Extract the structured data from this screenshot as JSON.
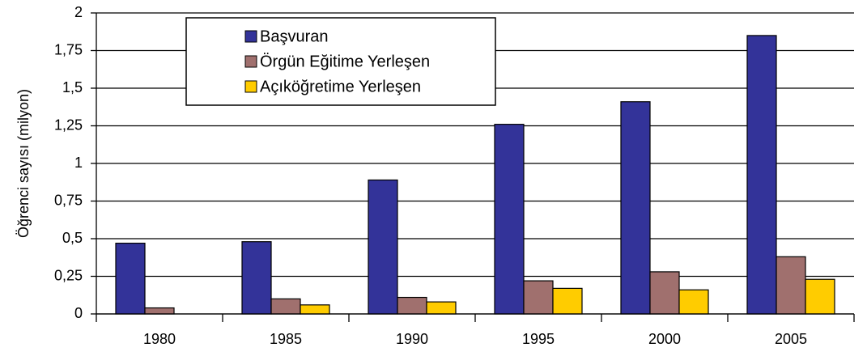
{
  "chart_data": {
    "type": "bar",
    "y_label": "Öğrenci sayısı (milyon)",
    "categories": [
      "1980",
      "1985",
      "1990",
      "1995",
      "2000",
      "2005"
    ],
    "series": [
      {
        "name": "Başvuran",
        "color": "#333399",
        "values": [
          0.47,
          0.48,
          0.89,
          1.26,
          1.41,
          1.85
        ]
      },
      {
        "name": "Örgün Eğitime Yerleşen",
        "color": "#a0706e",
        "values": [
          0.04,
          0.1,
          0.11,
          0.22,
          0.28,
          0.38
        ]
      },
      {
        "name": "Açıköğretime Yerleşen",
        "color": "#ffcc00",
        "values": [
          0,
          0.06,
          0.08,
          0.17,
          0.16,
          0.23
        ]
      }
    ],
    "ylim": [
      0,
      2
    ],
    "yticks": [
      0,
      {
        "value": 0.25,
        "label": "0,25"
      },
      {
        "value": 0.5,
        "label": "0,5"
      },
      {
        "value": 0.75,
        "label": "0,75"
      },
      1,
      {
        "value": 1.25,
        "label": "1,25"
      },
      {
        "value": 1.5,
        "label": "1,5"
      },
      {
        "value": 1.75,
        "label": "1,75"
      },
      2
    ],
    "grid": true
  }
}
